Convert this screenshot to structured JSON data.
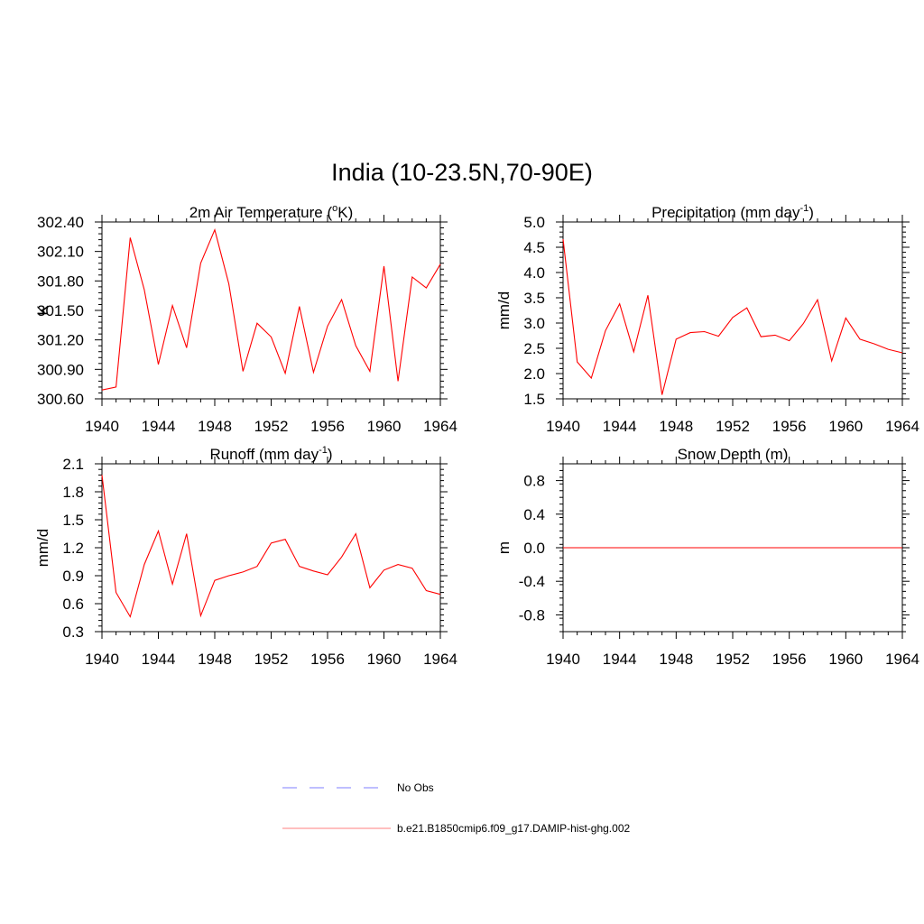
{
  "figure": {
    "title": "India (10-23.5N,70-90E)"
  },
  "colors": {
    "model": "#ff0000",
    "obs": "#9999ff",
    "axis": "#000000"
  },
  "chart_data": [
    {
      "type": "line",
      "id": "temp",
      "title_main": "2m Air Temperature (",
      "title_sup": "o",
      "title_tail": "K)",
      "ylabel": "K",
      "xlim": [
        1940,
        1964
      ],
      "ylim": [
        300.6,
        302.4
      ],
      "xticks": [
        1940,
        1944,
        1948,
        1952,
        1956,
        1960,
        1964
      ],
      "yticks": [
        "300.60",
        "300.90",
        "301.20",
        "301.50",
        "301.80",
        "302.10",
        "302.40"
      ],
      "x": [
        1940,
        1941,
        1942,
        1943,
        1944,
        1945,
        1946,
        1947,
        1948,
        1949,
        1950,
        1951,
        1952,
        1953,
        1954,
        1955,
        1956,
        1957,
        1958,
        1959,
        1960,
        1961,
        1962,
        1963,
        1964
      ],
      "series": [
        {
          "values": [
            300.69,
            300.72,
            302.24,
            301.71,
            300.95,
            301.55,
            301.12,
            301.98,
            302.32,
            301.77,
            300.88,
            301.37,
            301.23,
            300.86,
            301.54,
            300.87,
            301.34,
            301.61,
            301.14,
            300.88,
            301.95,
            300.78,
            301.84,
            301.73,
            301.97
          ]
        }
      ]
    },
    {
      "type": "line",
      "id": "precip",
      "title_main": "Precipitation (mm day",
      "title_sup": "-1",
      "title_tail": ")",
      "ylabel": "mm/d",
      "xlim": [
        1940,
        1964
      ],
      "ylim": [
        1.5,
        5.0
      ],
      "xticks": [
        1940,
        1944,
        1948,
        1952,
        1956,
        1960,
        1964
      ],
      "yticks": [
        "1.5",
        "2.0",
        "2.5",
        "3.0",
        "3.5",
        "4.0",
        "4.5",
        "5.0"
      ],
      "x": [
        1940,
        1941,
        1942,
        1943,
        1944,
        1945,
        1946,
        1947,
        1948,
        1949,
        1950,
        1951,
        1952,
        1953,
        1954,
        1955,
        1956,
        1957,
        1958,
        1959,
        1960,
        1961,
        1962,
        1963,
        1964
      ],
      "series": [
        {
          "values": [
            4.66,
            2.23,
            1.91,
            2.85,
            3.38,
            2.43,
            3.55,
            1.58,
            2.68,
            2.81,
            2.83,
            2.74,
            3.11,
            3.3,
            2.73,
            2.76,
            2.65,
            2.99,
            3.46,
            2.25,
            3.1,
            2.68,
            2.59,
            2.48,
            2.41
          ]
        }
      ]
    },
    {
      "type": "line",
      "id": "runoff",
      "title_main": "Runoff (mm day",
      "title_sup": "-1",
      "title_tail": ")",
      "ylabel": "mm/d",
      "xlim": [
        1940,
        1964
      ],
      "ylim": [
        0.3,
        2.1
      ],
      "xticks": [
        1940,
        1944,
        1948,
        1952,
        1956,
        1960,
        1964
      ],
      "yticks": [
        "0.3",
        "0.6",
        "0.9",
        "1.2",
        "1.5",
        "1.8",
        "2.1"
      ],
      "x": [
        1940,
        1941,
        1942,
        1943,
        1944,
        1945,
        1946,
        1947,
        1948,
        1949,
        1950,
        1951,
        1952,
        1953,
        1954,
        1955,
        1956,
        1957,
        1958,
        1959,
        1960,
        1961,
        1962,
        1963,
        1964
      ],
      "series": [
        {
          "values": [
            1.98,
            0.72,
            0.46,
            1.02,
            1.38,
            0.81,
            1.35,
            0.47,
            0.85,
            0.9,
            0.94,
            1.0,
            1.25,
            1.29,
            1.0,
            0.95,
            0.91,
            1.1,
            1.35,
            0.77,
            0.96,
            1.02,
            0.98,
            0.74,
            0.7
          ]
        }
      ]
    },
    {
      "type": "line",
      "id": "snow",
      "title_main": "Snow Depth (m)",
      "title_sup": "",
      "title_tail": "",
      "ylabel": "m",
      "xlim": [
        1940,
        1964
      ],
      "ylim": [
        -1.0,
        1.0
      ],
      "xticks": [
        1940,
        1944,
        1948,
        1952,
        1956,
        1960,
        1964
      ],
      "yticks": [
        "-0.8",
        "-0.4",
        "0.0",
        "0.4",
        "0.8"
      ],
      "x": [
        1940,
        1941,
        1942,
        1943,
        1944,
        1945,
        1946,
        1947,
        1948,
        1949,
        1950,
        1951,
        1952,
        1953,
        1954,
        1955,
        1956,
        1957,
        1958,
        1959,
        1960,
        1961,
        1962,
        1963,
        1964
      ],
      "series": [
        {
          "values": [
            0,
            0,
            0,
            0,
            0,
            0,
            0,
            0,
            0,
            0,
            0,
            0,
            0,
            0,
            0,
            0,
            0,
            0,
            0,
            0,
            0,
            0,
            0,
            0,
            0
          ]
        }
      ]
    }
  ],
  "legend": {
    "placement": "bottom-center",
    "items": [
      {
        "label": "No Obs",
        "style": "dashed",
        "color": "#9999ff"
      },
      {
        "label": "b.e21.B1850cmip6.f09_g17.DAMIP-hist-ghg.002",
        "style": "solid",
        "color": "#ff9999"
      }
    ]
  }
}
